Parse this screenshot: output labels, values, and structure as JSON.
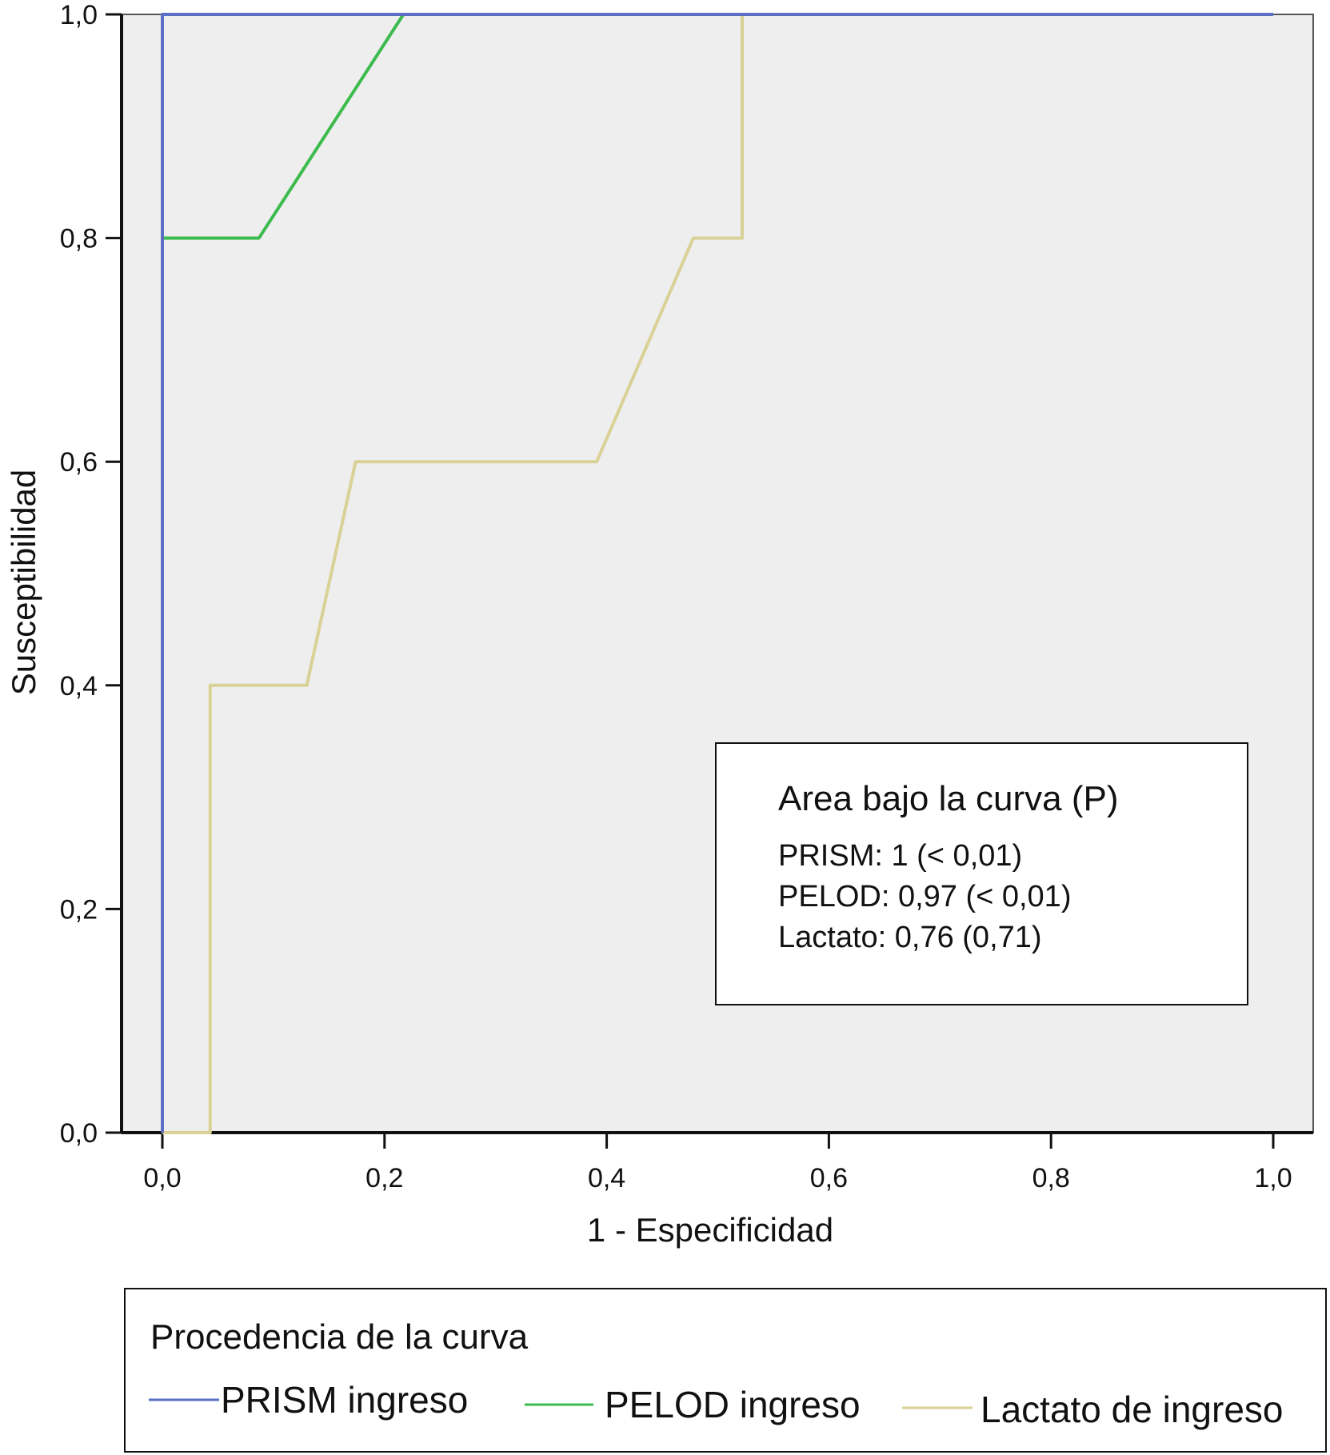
{
  "chart_data": {
    "type": "line",
    "xlabel": "1 - Especificidad",
    "ylabel": "Susceptibilidad",
    "xlim": [
      0,
      1
    ],
    "ylim": [
      0,
      1
    ],
    "x_ticks": [
      "0,0",
      "0,2",
      "0,4",
      "0,6",
      "0,8",
      "1,0"
    ],
    "y_ticks": [
      "0,0",
      "0,2",
      "0,4",
      "0,6",
      "0,8",
      "1,0"
    ],
    "tick_values": [
      0,
      0.2,
      0.4,
      0.6,
      0.8,
      1.0
    ],
    "grid": false,
    "plot_background": "#eeeeee",
    "series": [
      {
        "name": "PRISM ingreso",
        "color": "#5b6fc4",
        "x": [
          0,
          0,
          0,
          1
        ],
        "y": [
          0,
          0.8,
          1,
          1
        ]
      },
      {
        "name": "PELOD ingreso",
        "color": "#3dbb4e",
        "x": [
          0,
          0,
          0.087,
          0.217,
          1
        ],
        "y": [
          0,
          0.8,
          0.8,
          1,
          1
        ]
      },
      {
        "name": "Lactato de ingreso",
        "color": "#d9d196",
        "x": [
          0,
          0.043,
          0.043,
          0.13,
          0.174,
          0.391,
          0.478,
          0.522,
          0.522,
          1
        ],
        "y": [
          0,
          0,
          0.4,
          0.4,
          0.6,
          0.6,
          0.8,
          0.8,
          1,
          1
        ]
      }
    ],
    "annotation": {
      "title": "Area bajo la curva (P)",
      "lines": [
        "PRISM: 1 (< 0,01)",
        "PELOD: 0,97 (< 0,01)",
        "Lactato: 0,76 (0,71)"
      ]
    },
    "legend": {
      "title": "Procedencia de la curva",
      "placement": "bottom",
      "items": [
        "PRISM ingreso",
        "PELOD ingreso",
        "Lactato de ingreso"
      ]
    }
  }
}
